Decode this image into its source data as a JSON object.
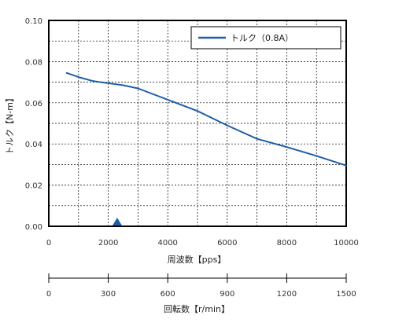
{
  "chart_data": {
    "type": "line",
    "xlabel": "周波数【pps】",
    "ylabel": "トルク【N-m】",
    "xlim": [
      0,
      10000
    ],
    "ylim": [
      0,
      0.1
    ],
    "x_ticks": [
      "0",
      "2000",
      "4000",
      "6000",
      "8000",
      "10000"
    ],
    "y_ticks": [
      "0.00",
      "0.02",
      "0.04",
      "0.06",
      "0.08",
      "0.10"
    ],
    "grid": true,
    "legend_position": "top-right",
    "series": [
      {
        "name": "トルク（0.8A）",
        "color": "#1f5fa8",
        "x": [
          600,
          1000,
          1500,
          2000,
          2500,
          3000,
          4000,
          5000,
          6000,
          7000,
          8000,
          9000,
          10000
        ],
        "y": [
          0.0745,
          0.0725,
          0.0705,
          0.0695,
          0.0685,
          0.067,
          0.0615,
          0.056,
          0.049,
          0.0425,
          0.0385,
          0.0342,
          0.0295
        ]
      }
    ],
    "marker": {
      "x": 2300,
      "color": "#1f5fa8",
      "shape": "triangle"
    },
    "secondary_axis": {
      "label": "回転数【r/min】",
      "range": [
        0,
        1500
      ],
      "ticks": [
        "0",
        "300",
        "600",
        "900",
        "1200",
        "1500"
      ]
    }
  }
}
